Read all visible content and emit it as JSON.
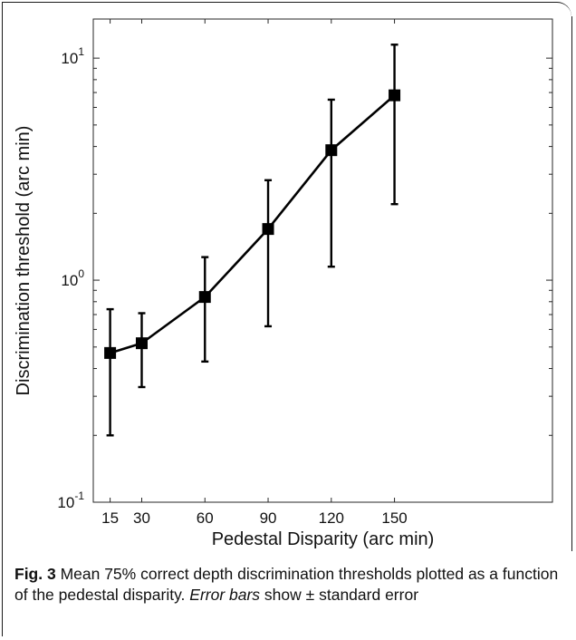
{
  "chart_data": {
    "type": "line",
    "x_scale": "linear",
    "y_scale": "log",
    "xlabel": "Pedestal Disparity (arc min)",
    "ylabel": "Discrimination threshold (arc min)",
    "x_ticks": [
      15,
      30,
      60,
      90,
      120,
      150
    ],
    "y_ticks": [
      {
        "value": 0.1,
        "base": "10",
        "exp": "-1"
      },
      {
        "value": 1,
        "base": "10",
        "exp": "0"
      },
      {
        "value": 10,
        "base": "10",
        "exp": "1"
      }
    ],
    "xlim": [
      7,
      225
    ],
    "ylim": [
      0.1,
      15
    ],
    "grid": false,
    "marker": "square",
    "line_color": "#000000",
    "series": [
      {
        "x": [
          15,
          30,
          60,
          90,
          120,
          150
        ],
        "y": [
          0.47,
          0.52,
          0.84,
          1.7,
          3.85,
          6.8
        ],
        "y_err_low": [
          0.2,
          0.33,
          0.43,
          0.62,
          1.15,
          2.2
        ],
        "y_err_high": [
          0.74,
          0.71,
          1.27,
          2.82,
          6.5,
          11.5
        ]
      }
    ]
  },
  "caption": {
    "label": "Fig. 3",
    "text_before": " Mean 75% correct depth discrimination thresholds plotted as a function of the pedestal disparity. ",
    "italic": "Error bars",
    "text_after": " show ± standard error"
  }
}
